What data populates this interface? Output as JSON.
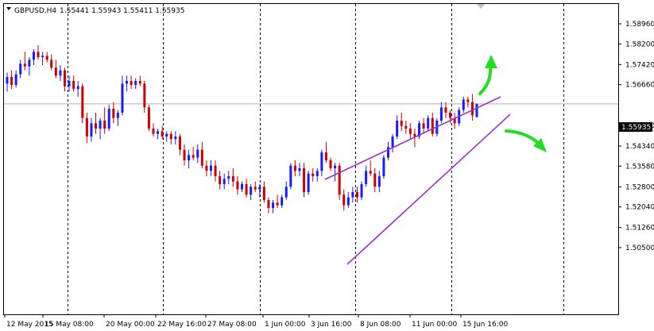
{
  "window": {
    "title": "GBPUSD,H4",
    "ohlc": "1.55441 1.55943 1.55411 1.55935",
    "current_price": "1.55935"
  },
  "colors": {
    "bull": "#1a1aff",
    "bear": "#cc0000",
    "channel": "#9933cc",
    "arrow": "#22dd22",
    "grid": "#000000",
    "price_line": "#b0b0b0"
  },
  "chart_data": {
    "type": "candlestick",
    "symbol": "GBPUSD",
    "timeframe": "H4",
    "ylim": [
      1.502,
      1.598
    ],
    "y_ticks": [
      "1.58960",
      "1.58200",
      "1.57420",
      "1.56660",
      "1.55120",
      "1.54340",
      "1.53580",
      "1.52800",
      "1.52040",
      "1.51260",
      "1.50500"
    ],
    "x_ticks": [
      "12 May 2015",
      "15 May 08:00",
      "20 May 00:00",
      "22 May 16:00",
      "27 May 08:00",
      "1 Jun 00:00",
      "3 Jun 16:00",
      "8 Jun 08:00",
      "11 Jun 00:00",
      "15 Jun 16:00"
    ],
    "current_price": 1.55935,
    "series": [
      {
        "values": [
          [
            1.567,
            1.5712,
            1.564,
            1.5695
          ],
          [
            1.5695,
            1.572,
            1.565,
            1.5665
          ],
          [
            1.5665,
            1.572,
            1.5655,
            1.5705
          ],
          [
            1.5705,
            1.576,
            1.569,
            1.5745
          ],
          [
            1.5745,
            1.579,
            1.572,
            1.5735
          ],
          [
            1.5735,
            1.577,
            1.57,
            1.576
          ],
          [
            1.576,
            1.58,
            1.574,
            1.579
          ],
          [
            1.579,
            1.5815,
            1.576,
            1.577
          ],
          [
            1.577,
            1.579,
            1.574,
            1.5775
          ],
          [
            1.5775,
            1.579,
            1.575,
            1.576
          ],
          [
            1.576,
            1.578,
            1.572,
            1.573
          ],
          [
            1.573,
            1.576,
            1.569,
            1.57
          ],
          [
            1.57,
            1.574,
            1.568,
            1.572
          ],
          [
            1.572,
            1.573,
            1.564,
            1.566
          ],
          [
            1.566,
            1.57,
            1.564,
            1.568
          ],
          [
            1.568,
            1.57,
            1.564,
            1.565
          ],
          [
            1.565,
            1.568,
            1.562,
            1.566
          ],
          [
            1.566,
            1.567,
            1.552,
            1.554
          ],
          [
            1.554,
            1.556,
            1.5445,
            1.547
          ],
          [
            1.547,
            1.554,
            1.545,
            1.552
          ],
          [
            1.552,
            1.556,
            1.548,
            1.55
          ],
          [
            1.55,
            1.554,
            1.546,
            1.553
          ],
          [
            1.553,
            1.558,
            1.548,
            1.55
          ],
          [
            1.55,
            1.559,
            1.549,
            1.5575
          ],
          [
            1.5575,
            1.56,
            1.552,
            1.554
          ],
          [
            1.554,
            1.557,
            1.551,
            1.556
          ],
          [
            1.556,
            1.57,
            1.555,
            1.567
          ],
          [
            1.567,
            1.57,
            1.564,
            1.568
          ],
          [
            1.568,
            1.57,
            1.565,
            1.5665
          ],
          [
            1.5665,
            1.569,
            1.565,
            1.568
          ],
          [
            1.568,
            1.57,
            1.566,
            1.567
          ],
          [
            1.567,
            1.568,
            1.556,
            1.558
          ],
          [
            1.558,
            1.559,
            1.549,
            1.55
          ],
          [
            1.55,
            1.552,
            1.547,
            1.548
          ],
          [
            1.548,
            1.55,
            1.546,
            1.549
          ],
          [
            1.549,
            1.551,
            1.546,
            1.547
          ],
          [
            1.547,
            1.549,
            1.545,
            1.548
          ],
          [
            1.548,
            1.549,
            1.544,
            1.546
          ],
          [
            1.546,
            1.549,
            1.544,
            1.547
          ],
          [
            1.547,
            1.548,
            1.54,
            1.542
          ],
          [
            1.542,
            1.544,
            1.536,
            1.538
          ],
          [
            1.538,
            1.542,
            1.535,
            1.54
          ],
          [
            1.54,
            1.543,
            1.538,
            1.539
          ],
          [
            1.539,
            1.544,
            1.537,
            1.542
          ],
          [
            1.542,
            1.545,
            1.535,
            1.536
          ],
          [
            1.536,
            1.538,
            1.532,
            1.534
          ],
          [
            1.534,
            1.538,
            1.532,
            1.536
          ],
          [
            1.536,
            1.538,
            1.53,
            1.532
          ],
          [
            1.532,
            1.534,
            1.527,
            1.529
          ],
          [
            1.529,
            1.533,
            1.527,
            1.531
          ],
          [
            1.531,
            1.534,
            1.529,
            1.532
          ],
          [
            1.532,
            1.535,
            1.528,
            1.53
          ],
          [
            1.53,
            1.532,
            1.525,
            1.527
          ],
          [
            1.527,
            1.53,
            1.526,
            1.529
          ],
          [
            1.529,
            1.531,
            1.524,
            1.525
          ],
          [
            1.525,
            1.529,
            1.523,
            1.528
          ],
          [
            1.528,
            1.53,
            1.526,
            1.527
          ],
          [
            1.527,
            1.529,
            1.524,
            1.528
          ],
          [
            1.528,
            1.53,
            1.522,
            1.523
          ],
          [
            1.523,
            1.524,
            1.518,
            1.52
          ],
          [
            1.52,
            1.523,
            1.518,
            1.522
          ],
          [
            1.522,
            1.525,
            1.52,
            1.521
          ],
          [
            1.521,
            1.525,
            1.52,
            1.524
          ],
          [
            1.524,
            1.53,
            1.523,
            1.528
          ],
          [
            1.528,
            1.537,
            1.527,
            1.536
          ],
          [
            1.536,
            1.538,
            1.532,
            1.534
          ],
          [
            1.534,
            1.537,
            1.532,
            1.535
          ],
          [
            1.535,
            1.537,
            1.524,
            1.526
          ],
          [
            1.526,
            1.534,
            1.525,
            1.533
          ],
          [
            1.533,
            1.535,
            1.53,
            1.532
          ],
          [
            1.532,
            1.535,
            1.53,
            1.534
          ],
          [
            1.534,
            1.542,
            1.532,
            1.541
          ],
          [
            1.541,
            1.545,
            1.537,
            1.538
          ],
          [
            1.538,
            1.539,
            1.534,
            1.535
          ],
          [
            1.535,
            1.537,
            1.53,
            1.536
          ],
          [
            1.536,
            1.537,
            1.523,
            1.525
          ],
          [
            1.525,
            1.527,
            1.519,
            1.521
          ],
          [
            1.521,
            1.526,
            1.52,
            1.524
          ],
          [
            1.524,
            1.528,
            1.522,
            1.526
          ],
          [
            1.526,
            1.528,
            1.522,
            1.524
          ],
          [
            1.524,
            1.53,
            1.523,
            1.529
          ],
          [
            1.529,
            1.536,
            1.528,
            1.534
          ],
          [
            1.534,
            1.538,
            1.532,
            1.533
          ],
          [
            1.533,
            1.535,
            1.526,
            1.528
          ],
          [
            1.528,
            1.534,
            1.526,
            1.532
          ],
          [
            1.532,
            1.54,
            1.531,
            1.539
          ],
          [
            1.539,
            1.545,
            1.538,
            1.543
          ],
          [
            1.543,
            1.548,
            1.541,
            1.547
          ],
          [
            1.547,
            1.555,
            1.546,
            1.553
          ],
          [
            1.553,
            1.556,
            1.549,
            1.551
          ],
          [
            1.551,
            1.553,
            1.548,
            1.55
          ],
          [
            1.55,
            1.552,
            1.546,
            1.548
          ],
          [
            1.548,
            1.55,
            1.543,
            1.547
          ],
          [
            1.547,
            1.553,
            1.546,
            1.552
          ],
          [
            1.552,
            1.554,
            1.548,
            1.55
          ],
          [
            1.55,
            1.555,
            1.549,
            1.554
          ],
          [
            1.554,
            1.556,
            1.547,
            1.548
          ],
          [
            1.548,
            1.554,
            1.547,
            1.553
          ],
          [
            1.553,
            1.56,
            1.552,
            1.558
          ],
          [
            1.558,
            1.56,
            1.554,
            1.556
          ],
          [
            1.556,
            1.557,
            1.552,
            1.554
          ],
          [
            1.554,
            1.556,
            1.55,
            1.552
          ],
          [
            1.552,
            1.558,
            1.551,
            1.557
          ],
          [
            1.557,
            1.562,
            1.556,
            1.561
          ],
          [
            1.561,
            1.562,
            1.558,
            1.56
          ],
          [
            1.56,
            1.563,
            1.553,
            1.555
          ],
          [
            1.55441,
            1.55943,
            1.55411,
            1.55935
          ]
        ]
      }
    ]
  }
}
